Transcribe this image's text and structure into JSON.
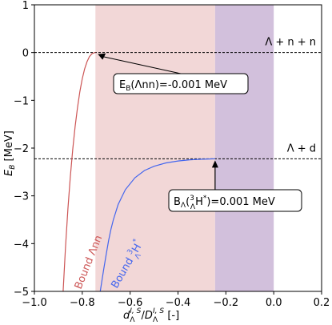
{
  "chart_data": {
    "type": "line",
    "xlabel_parts": {
      "base": "d",
      "sub": "Λ",
      "sup": "I, S",
      "sep": "/",
      "base2": "D",
      "sub2": "Λ",
      "sup2": "I, S",
      "unit": " [-]"
    },
    "ylabel_parts": {
      "base": "E",
      "sub": "B",
      "unit": " [MeV]"
    },
    "xlim": [
      -1.0,
      0.2
    ],
    "ylim": [
      -5,
      1
    ],
    "xticks": [
      -1.0,
      -0.8,
      -0.6,
      -0.4,
      -0.2,
      0.0,
      0.2
    ],
    "xtick_labels": [
      "−1.0",
      "−0.8",
      "−0.6",
      "−0.4",
      "−0.2",
      "0.0",
      "0.2"
    ],
    "yticks": [
      -5,
      -4,
      -3,
      -2,
      -1,
      0,
      1
    ],
    "ytick_labels": [
      "−5",
      "−4",
      "−3",
      "−2",
      "−1",
      "0",
      "1"
    ],
    "shaded_regions": [
      {
        "x": [
          -0.745,
          -0.245
        ],
        "color": "#f2d7d7"
      },
      {
        "x": [
          -0.245,
          0.0
        ],
        "color": "#d2c0dc"
      }
    ],
    "thresholds": [
      {
        "y": 0.0,
        "label": "Λ + n + n"
      },
      {
        "y": -2.224,
        "label": "Λ + d"
      }
    ],
    "series": [
      {
        "label_main": "Bound Λnn",
        "color": "#cc5555",
        "x": [
          -0.88,
          -0.87,
          -0.86,
          -0.85,
          -0.84,
          -0.83,
          -0.82,
          -0.81,
          -0.8,
          -0.79,
          -0.78,
          -0.77,
          -0.76,
          -0.75,
          -0.745
        ],
        "y": [
          -5.0,
          -4.07,
          -3.27,
          -2.6,
          -2.03,
          -1.55,
          -1.15,
          -0.82,
          -0.55,
          -0.34,
          -0.19,
          -0.085,
          -0.025,
          -0.003,
          -0.001
        ]
      },
      {
        "label_main": "Bound ",
        "label_nucleus_sup": "3",
        "label_nucleus_sub": "Λ",
        "label_nucleus_base": "H",
        "label_nucleus_star": "*",
        "color": "#4466ee",
        "x": [
          -0.725,
          -0.71,
          -0.7,
          -0.69,
          -0.68,
          -0.67,
          -0.65,
          -0.62,
          -0.58,
          -0.54,
          -0.5,
          -0.45,
          -0.4,
          -0.35,
          -0.3,
          -0.26,
          -0.245
        ],
        "y": [
          -5.0,
          -4.52,
          -4.22,
          -3.94,
          -3.7,
          -3.5,
          -3.18,
          -2.87,
          -2.62,
          -2.47,
          -2.38,
          -2.31,
          -2.27,
          -2.245,
          -2.233,
          -2.226,
          -2.225
        ]
      }
    ],
    "annotations": [
      {
        "text": "E_B(Λnn)=-0.001 MeV",
        "parts": {
          "base": "E",
          "sub": "B",
          "rest": "(Λnn)=-0.001 MeV"
        },
        "arrow_to": [
          -0.745,
          0.0
        ]
      },
      {
        "text": "B_Λ(3ΛH*)=0.001 MeV",
        "parts": {
          "base": "B",
          "sub": "Λ",
          "open": "(",
          "sup": "3",
          "sub2": "Λ",
          "nuc": "H",
          "star": "*",
          "rest": ")=0.001 MeV"
        },
        "arrow_to": [
          -0.245,
          -2.224
        ]
      }
    ],
    "grid": false
  }
}
